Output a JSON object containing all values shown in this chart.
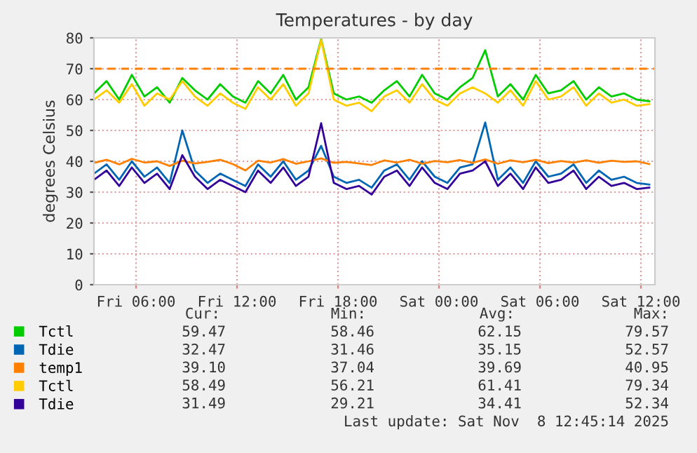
{
  "chart_data": {
    "type": "line",
    "title": "Temperatures - by day",
    "ylabel": "degrees Celsius",
    "x": [
      "2025-11-07T03:30",
      "2025-11-07T04:15",
      "2025-11-07T05:00",
      "2025-11-07T05:45",
      "2025-11-07T06:30",
      "2025-11-07T07:15",
      "2025-11-07T08:00",
      "2025-11-07T08:45",
      "2025-11-07T09:30",
      "2025-11-07T10:15",
      "2025-11-07T11:00",
      "2025-11-07T11:45",
      "2025-11-07T12:30",
      "2025-11-07T13:15",
      "2025-11-07T14:00",
      "2025-11-07T14:45",
      "2025-11-07T15:30",
      "2025-11-07T16:15",
      "2025-11-07T17:00",
      "2025-11-07T17:45",
      "2025-11-07T18:30",
      "2025-11-07T19:15",
      "2025-11-07T20:00",
      "2025-11-07T20:45",
      "2025-11-07T21:30",
      "2025-11-07T22:15",
      "2025-11-07T23:00",
      "2025-11-07T23:45",
      "2025-11-08T00:30",
      "2025-11-08T01:15",
      "2025-11-08T02:00",
      "2025-11-08T02:45",
      "2025-11-08T03:30",
      "2025-11-08T04:15",
      "2025-11-08T05:00",
      "2025-11-08T05:45",
      "2025-11-08T06:30",
      "2025-11-08T07:15",
      "2025-11-08T08:00",
      "2025-11-08T08:45",
      "2025-11-08T09:30",
      "2025-11-08T10:15",
      "2025-11-08T11:00",
      "2025-11-08T11:45",
      "2025-11-08T12:30"
    ],
    "series": [
      {
        "name": "Tctl",
        "color": "#00cc00",
        "values": [
          62,
          66,
          60,
          68,
          61,
          64,
          59,
          67,
          63,
          60,
          65,
          61,
          59,
          66,
          62,
          68,
          60,
          64,
          79.57,
          62,
          60,
          61,
          59,
          63,
          66,
          61,
          68,
          62,
          60,
          64,
          67,
          76,
          61,
          65,
          60,
          68,
          62,
          63,
          66,
          60,
          64,
          61,
          62,
          60,
          59.47
        ]
      },
      {
        "name": "Tdie",
        "color": "#0066b3",
        "values": [
          36,
          39,
          34,
          40,
          35,
          38,
          33,
          50,
          37,
          33,
          36,
          34,
          32,
          39,
          35,
          40,
          34,
          37,
          45,
          35,
          33,
          34,
          31.46,
          37,
          39,
          34,
          40,
          35,
          33,
          38,
          39,
          52.57,
          34,
          38,
          33,
          40,
          35,
          36,
          39,
          33,
          37,
          34,
          35,
          33,
          32.47
        ]
      },
      {
        "name": "temp1",
        "color": "#ff8000",
        "values": [
          39.5,
          40.5,
          39,
          40.8,
          39.6,
          40,
          38.5,
          40.2,
          39.3,
          39.8,
          40.5,
          39.1,
          37.04,
          40.2,
          39.6,
          40.7,
          39.2,
          40,
          40.95,
          39.5,
          39.8,
          39.3,
          38.8,
          40.3,
          39.6,
          40.5,
          39.2,
          40.1,
          39.7,
          40.4,
          39.5,
          40.6,
          39.2,
          40.3,
          39.7,
          40.5,
          39.4,
          40.1,
          39.6,
          40.3,
          39.5,
          40.2,
          39.8,
          40,
          39.1
        ]
      },
      {
        "name": "Tctl",
        "color": "#ffcc00",
        "values": [
          60,
          63,
          59,
          65,
          58,
          62,
          60,
          66,
          61,
          58,
          62,
          59,
          57,
          64,
          60,
          65,
          58,
          62,
          79.34,
          60,
          58,
          59,
          56.21,
          61,
          63,
          59,
          65,
          60,
          58,
          62,
          64,
          62,
          59,
          63,
          58,
          66,
          60,
          61,
          64,
          58,
          62,
          59,
          60,
          58,
          58.49
        ]
      },
      {
        "name": "Tdie",
        "color": "#330099",
        "values": [
          34,
          37,
          32,
          38,
          33,
          36,
          31,
          42,
          35,
          31,
          34,
          32,
          30,
          37,
          33,
          38,
          32,
          35,
          52.34,
          33,
          31,
          32,
          29.21,
          35,
          37,
          32,
          38,
          33,
          31,
          36,
          37,
          40,
          32,
          36,
          31,
          38,
          33,
          34,
          37,
          31,
          35,
          32,
          33,
          31,
          31.49
        ]
      }
    ],
    "xlim": [
      "2025-11-07T03:30",
      "2025-11-08T12:50"
    ],
    "xticks": [
      {
        "value": "2025-11-07T06:00",
        "label": "Fri 06:00"
      },
      {
        "value": "2025-11-07T12:00",
        "label": "Fri 12:00"
      },
      {
        "value": "2025-11-07T18:00",
        "label": "Fri 18:00"
      },
      {
        "value": "2025-11-08T00:00",
        "label": "Sat 00:00"
      },
      {
        "value": "2025-11-08T06:00",
        "label": "Sat 06:00"
      },
      {
        "value": "2025-11-08T12:00",
        "label": "Sat 12:00"
      }
    ],
    "ylim": [
      0,
      80
    ],
    "yticks": [
      0,
      10,
      20,
      30,
      40,
      50,
      60,
      70,
      80
    ],
    "ref_lines": [
      {
        "axis": "y",
        "value": 70,
        "color": "#ff8000",
        "line_style": "dashed"
      }
    ],
    "grid": true,
    "legend": "bottom left",
    "line_style": "solid",
    "marker": "none",
    "annotations": [
      "Cur:",
      "Min:",
      "Avg:",
      "Max:",
      "59.47",
      "58.46",
      "62.15",
      "79.57",
      "32.47",
      "31.46",
      "35.15",
      "52.57",
      "39.10",
      "37.04",
      "39.69",
      "40.95",
      "58.49",
      "56.21",
      "61.41",
      "79.34",
      "31.49",
      "29.21",
      "34.41",
      "52.34",
      "Last update: Sat Nov  8 12:45:14 2025"
    ]
  }
}
